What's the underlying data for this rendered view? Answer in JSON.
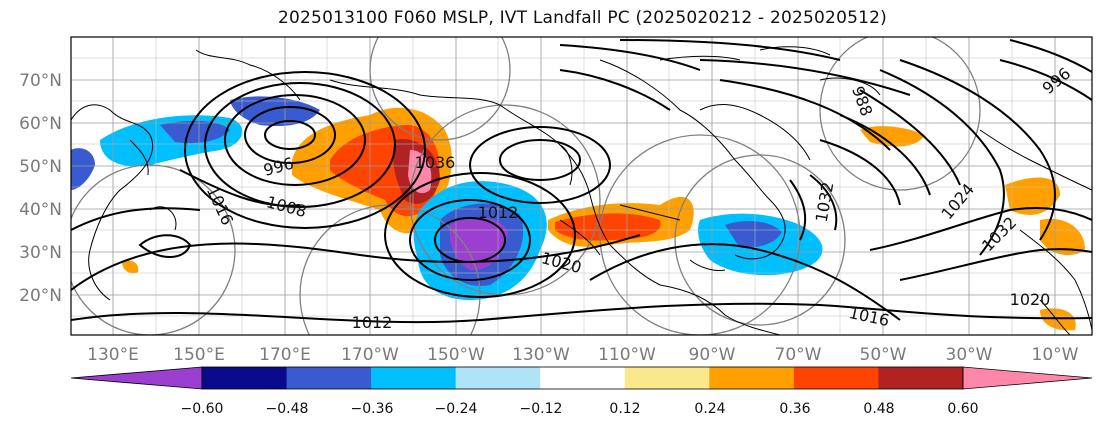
{
  "title": "2025013100 F060 MSLP, IVT Landfall PC (2025020212 - 2025020512)",
  "latitude_labels": [
    "70°N",
    "60°N",
    "50°N",
    "40°N",
    "30°N",
    "20°N"
  ],
  "longitude_labels": [
    "130°E",
    "150°E",
    "170°E",
    "170°W",
    "150°W",
    "130°W",
    "110°W",
    "90°W",
    "70°W",
    "50°W",
    "30°W",
    "10°W"
  ],
  "isobar_labels": [
    "1036",
    "1016",
    "1008",
    "1020",
    "1012",
    "1016",
    "1020",
    "1032",
    "1032",
    "1012",
    "996",
    "988",
    "996",
    "1024"
  ],
  "colorbar": {
    "tick_labels": [
      "−0.60",
      "−0.48",
      "−0.36",
      "−0.24",
      "−0.12",
      "0.12",
      "0.24",
      "0.36",
      "0.48",
      "0.60"
    ],
    "colors": [
      "#9b3fd0",
      "#0a0a8c",
      "#3a5bd0",
      "#00bfff",
      "#aee3f8",
      "#ffffff",
      "#fbe88b",
      "#ffa000",
      "#ff4300",
      "#b22222",
      "#ff87aa"
    ]
  }
}
